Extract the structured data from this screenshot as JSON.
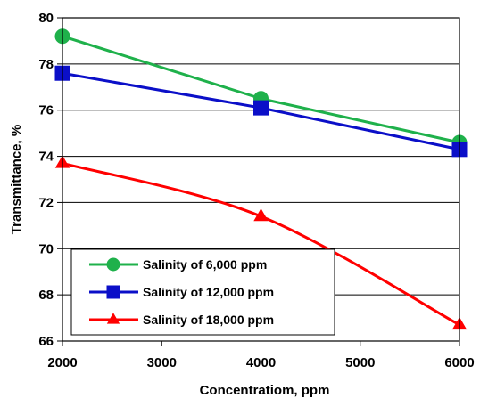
{
  "chart_data": {
    "type": "line",
    "xlabel": "Concentratiom, ppm",
    "ylabel": "Transmittance, %",
    "xlim": [
      2000,
      6000
    ],
    "ylim": [
      66,
      80
    ],
    "xticks": [
      2000,
      3000,
      4000,
      5000,
      6000
    ],
    "yticks": [
      66,
      68,
      70,
      72,
      74,
      76,
      78,
      80
    ],
    "x_tick_labels": [
      "2000",
      "3000",
      "4000",
      "5000",
      "6000"
    ],
    "y_tick_labels": [
      "66",
      "68",
      "70",
      "72",
      "74",
      "76",
      "78",
      "80"
    ],
    "horizontal_grid": true,
    "vertical_grid": false,
    "legend_position": "bottom-left",
    "x": [
      2000,
      4000,
      6000
    ],
    "series": [
      {
        "name": "Salinity of 6,000 ppm",
        "values": [
          79.2,
          76.5,
          74.6
        ],
        "color": "#1fb14b",
        "marker": "circle",
        "curve": "linear"
      },
      {
        "name": "Salinity of 12,000 ppm",
        "values": [
          77.6,
          76.1,
          74.3
        ],
        "color": "#0b0fc8",
        "marker": "square",
        "curve": "linear"
      },
      {
        "name": "Salinity of 18,000 ppm",
        "values": [
          73.7,
          71.4,
          66.7
        ],
        "color": "#ff0000",
        "marker": "triangle",
        "curve": "smooth"
      }
    ]
  }
}
